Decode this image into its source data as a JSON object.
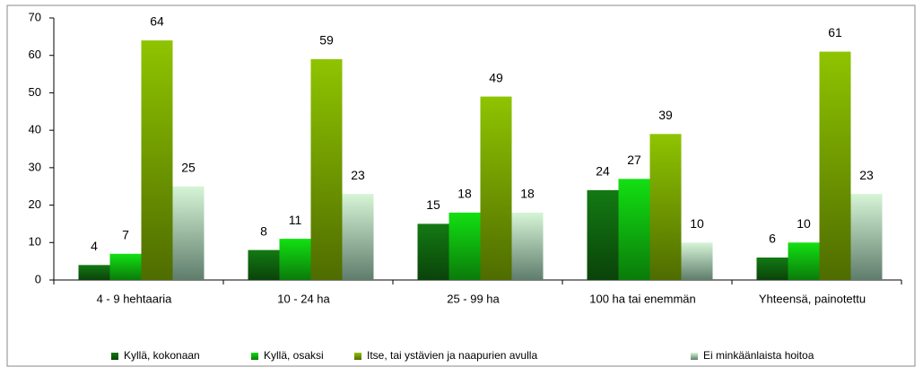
{
  "chart_data": {
    "type": "bar",
    "categories": [
      "4 - 9 hehtaaria",
      "10 - 24 ha",
      "25 - 99 ha",
      "100 ha tai enemmän",
      "Yhteensä, painotettu"
    ],
    "series": [
      {
        "name": "Kyllä, kokonaan",
        "color": "#137a13",
        "values": [
          4,
          8,
          15,
          24,
          6
        ]
      },
      {
        "name": "Kyllä, osaksi",
        "color": "#12e012",
        "values": [
          7,
          11,
          18,
          27,
          10
        ]
      },
      {
        "name": "Itse, tai ystävien ja naapurien avulla",
        "color": "#8fc400",
        "values": [
          64,
          59,
          49,
          39,
          61
        ]
      },
      {
        "name": "Ei minkäänlaista hoitoa",
        "color": "#d6f5d6",
        "values": [
          25,
          23,
          18,
          10,
          23
        ]
      }
    ],
    "ylim": [
      0,
      70
    ],
    "yticks": [
      0,
      10,
      20,
      30,
      40,
      50,
      60,
      70
    ],
    "grid": false,
    "legend": "bottom"
  }
}
